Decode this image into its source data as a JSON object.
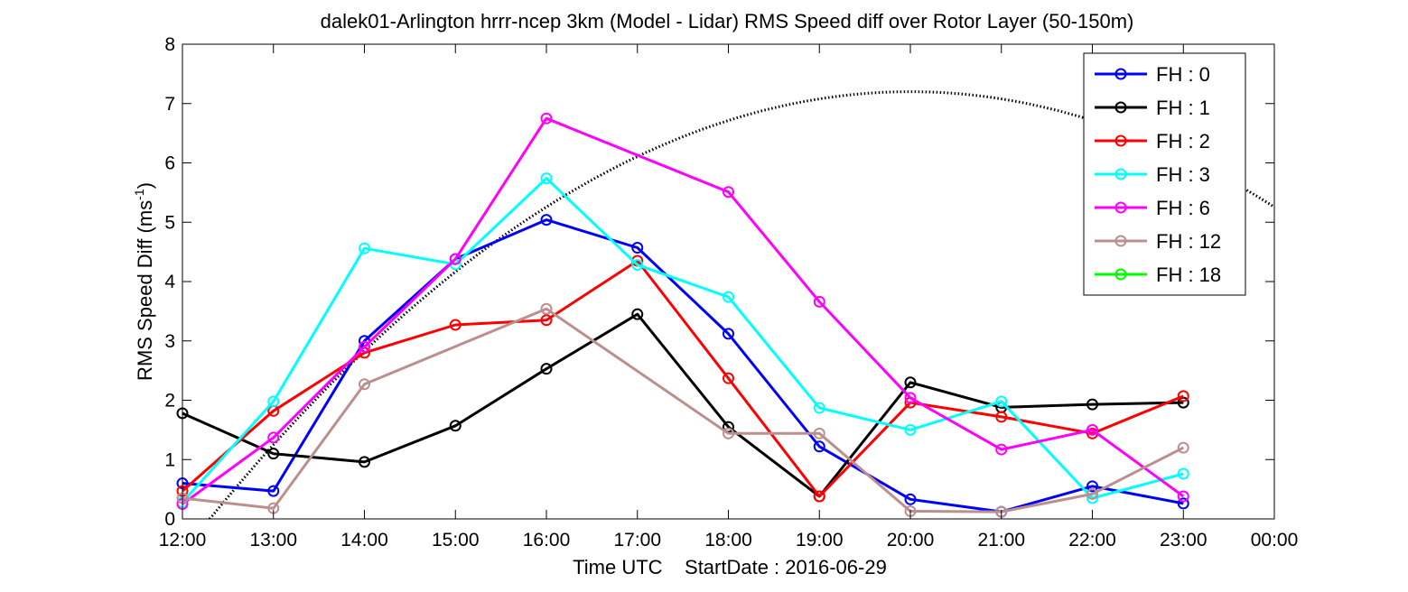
{
  "chart_data": {
    "type": "line",
    "title": "dalek01-Arlington hrrr-ncep 3km (Model - Lidar) RMS Speed diff over Rotor Layer (50-150m)",
    "xlabel": "Time UTC    StartDate : 2016-06-29",
    "ylabel_main": "RMS Speed Diff (ms",
    "ylabel_sup": "-1",
    "ylabel_close": ")",
    "x_tick_labels": [
      "12:00",
      "13:00",
      "14:00",
      "15:00",
      "16:00",
      "17:00",
      "18:00",
      "19:00",
      "20:00",
      "21:00",
      "22:00",
      "23:00",
      "00:00"
    ],
    "y_ticks": [
      0,
      1,
      2,
      3,
      4,
      5,
      6,
      7,
      8
    ],
    "xlim": [
      12,
      24
    ],
    "ylim": [
      0,
      8
    ],
    "legend_position": "top-right",
    "series": [
      {
        "name": "FH : 0",
        "color": "#0000ff",
        "x": [
          12,
          13,
          14,
          15,
          16,
          17,
          18,
          19,
          20,
          21,
          22,
          23
        ],
        "y": [
          0.6,
          0.47,
          3.0,
          4.38,
          5.04,
          4.57,
          3.12,
          1.22,
          0.33,
          0.12,
          0.55,
          0.26
        ]
      },
      {
        "name": "FH : 1",
        "color": "#000000",
        "x": [
          12,
          13,
          14,
          15,
          16,
          17,
          18,
          19,
          20,
          21,
          22,
          23
        ],
        "y": [
          1.78,
          1.1,
          0.96,
          1.57,
          2.53,
          3.45,
          1.55,
          0.38,
          2.3,
          1.88,
          1.93,
          1.96
        ]
      },
      {
        "name": "FH : 2",
        "color": "#ff0000",
        "x": [
          12,
          13,
          14,
          15,
          16,
          17,
          18,
          19,
          20,
          21,
          22,
          23
        ],
        "y": [
          0.47,
          1.82,
          2.8,
          3.27,
          3.35,
          4.35,
          2.37,
          0.38,
          1.96,
          1.72,
          1.44,
          2.07
        ]
      },
      {
        "name": "FH : 3",
        "color": "#00ffff",
        "x": [
          12,
          13,
          14,
          15,
          16,
          17,
          18,
          19,
          20,
          21,
          22,
          23
        ],
        "y": [
          0.28,
          1.98,
          4.56,
          4.29,
          5.74,
          4.28,
          3.74,
          1.87,
          1.5,
          1.98,
          0.35,
          0.76
        ]
      },
      {
        "name": "FH : 6",
        "color": "#ff00ff",
        "x": [
          12,
          13,
          14,
          15,
          16,
          18,
          19,
          20,
          21,
          22,
          23
        ],
        "y": [
          0.25,
          1.37,
          2.9,
          4.38,
          6.75,
          5.51,
          3.66,
          2.04,
          1.17,
          1.5,
          0.38
        ]
      },
      {
        "name": "FH : 12",
        "color": "#bc8f8f",
        "x": [
          12,
          13,
          14,
          16,
          18,
          19,
          20,
          21,
          22,
          23
        ],
        "y": [
          0.35,
          0.18,
          2.27,
          3.54,
          1.44,
          1.44,
          0.13,
          0.12,
          0.42,
          1.2
        ]
      },
      {
        "name": "FH : 18",
        "color": "#00ff00",
        "x": [],
        "y": []
      }
    ],
    "dashed_gap_lines": [
      {
        "color": "#ff00ff",
        "x": [
          16,
          18
        ],
        "y": [
          6.75,
          5.51
        ]
      },
      {
        "color": "#bc8f8f",
        "x": [
          14,
          16
        ],
        "y": [
          2.27,
          3.54
        ]
      },
      {
        "color": "#bc8f8f",
        "x": [
          16,
          18
        ],
        "y": [
          3.54,
          1.44
        ]
      }
    ],
    "dotted_curve": {
      "color": "#000000",
      "peak_x": 20.0,
      "peak_y": 7.2,
      "zero_x": 12.3
    }
  }
}
